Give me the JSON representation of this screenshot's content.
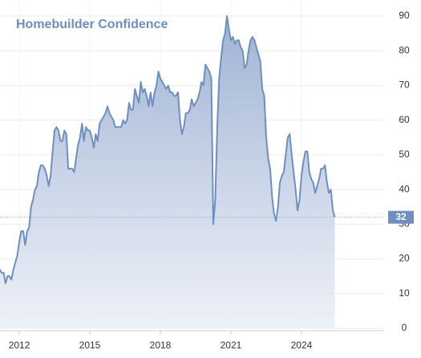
{
  "chart_data": {
    "type": "area",
    "title": "Homebuilder Confidence",
    "color": "#6e8fbf",
    "grid": true,
    "x": [
      2011.167,
      2011.25,
      2011.333,
      2011.417,
      2011.5,
      2011.583,
      2011.667,
      2011.75,
      2011.833,
      2011.917,
      2012,
      2012.083,
      2012.167,
      2012.25,
      2012.333,
      2012.417,
      2012.5,
      2012.583,
      2012.667,
      2012.75,
      2012.833,
      2012.917,
      2013,
      2013.083,
      2013.167,
      2013.25,
      2013.333,
      2013.417,
      2013.5,
      2013.583,
      2013.667,
      2013.75,
      2013.833,
      2013.917,
      2014,
      2014.083,
      2014.167,
      2014.25,
      2014.333,
      2014.417,
      2014.5,
      2014.583,
      2014.667,
      2014.75,
      2014.833,
      2014.917,
      2015,
      2015.083,
      2015.167,
      2015.25,
      2015.333,
      2015.417,
      2015.5,
      2015.583,
      2015.667,
      2015.75,
      2015.833,
      2015.917,
      2016,
      2016.083,
      2016.167,
      2016.25,
      2016.333,
      2016.417,
      2016.5,
      2016.583,
      2016.667,
      2016.75,
      2016.833,
      2016.917,
      2017,
      2017.083,
      2017.167,
      2017.25,
      2017.333,
      2017.417,
      2017.5,
      2017.583,
      2017.667,
      2017.75,
      2017.833,
      2017.917,
      2018,
      2018.083,
      2018.167,
      2018.25,
      2018.333,
      2018.417,
      2018.5,
      2018.583,
      2018.667,
      2018.75,
      2018.833,
      2018.917,
      2019,
      2019.083,
      2019.167,
      2019.25,
      2019.333,
      2019.417,
      2019.5,
      2019.583,
      2019.667,
      2019.75,
      2019.833,
      2019.917,
      2020,
      2020.083,
      2020.167,
      2020.25,
      2020.333,
      2020.417,
      2020.5,
      2020.583,
      2020.667,
      2020.75,
      2020.833,
      2020.917,
      2021,
      2021.083,
      2021.167,
      2021.25,
      2021.333,
      2021.417,
      2021.5,
      2021.583,
      2021.667,
      2021.75,
      2021.833,
      2021.917,
      2022,
      2022.083,
      2022.167,
      2022.25,
      2022.333,
      2022.417,
      2022.5,
      2022.583,
      2022.667,
      2022.75,
      2022.833,
      2022.917,
      2023,
      2023.083,
      2023.167,
      2023.25,
      2023.333,
      2023.417,
      2023.5,
      2023.583,
      2023.667,
      2023.75,
      2023.833,
      2023.917,
      2024,
      2024.083,
      2024.167,
      2024.25,
      2024.333,
      2024.417,
      2024.5,
      2024.583,
      2024.667,
      2024.75,
      2024.833,
      2024.917,
      2025,
      2025.083,
      2025.167,
      2025.25,
      2025.333,
      2025.417
    ],
    "values": [
      17,
      16,
      16,
      13,
      15,
      15,
      14,
      17,
      19,
      21,
      25,
      28,
      28,
      24,
      28,
      29,
      35,
      37,
      40,
      41,
      45,
      47,
      47,
      46,
      44,
      41,
      44,
      51,
      57,
      58,
      57,
      54,
      54,
      57,
      56,
      46,
      46,
      46,
      45,
      49,
      53,
      55,
      59,
      54,
      58,
      57,
      57,
      55,
      52,
      56,
      54,
      59,
      60,
      61,
      62,
      64,
      62,
      61,
      60,
      58,
      58,
      58,
      58,
      60,
      59,
      60,
      65,
      63,
      63,
      69,
      67,
      65,
      71,
      68,
      69,
      67,
      64,
      68,
      64,
      68,
      70,
      74,
      72,
      71,
      70,
      69,
      70,
      68,
      68,
      67,
      67,
      68,
      60,
      56,
      58,
      62,
      62,
      63,
      66,
      64,
      65,
      66,
      68,
      71,
      70,
      76,
      75,
      74,
      72,
      30,
      37,
      58,
      72,
      78,
      83,
      85,
      90,
      86,
      83,
      84,
      82,
      83,
      83,
      81,
      80,
      75,
      76,
      80,
      83,
      84,
      83,
      81,
      79,
      77,
      69,
      67,
      55,
      49,
      46,
      38,
      33,
      31,
      35,
      42,
      44,
      45,
      50,
      55,
      56,
      50,
      45,
      40,
      34,
      37,
      44,
      48,
      51,
      51,
      45,
      43,
      42,
      39,
      41,
      43,
      46,
      46,
      47,
      42,
      39,
      40,
      34,
      32
    ],
    "xlim": [
      2011.18,
      2027.48
    ],
    "xticks": [
      2012,
      2015,
      2018,
      2021,
      2024
    ],
    "ylim": [
      0,
      90
    ],
    "yticks": [
      0,
      10,
      20,
      30,
      40,
      50,
      60,
      70,
      80,
      90
    ]
  }
}
